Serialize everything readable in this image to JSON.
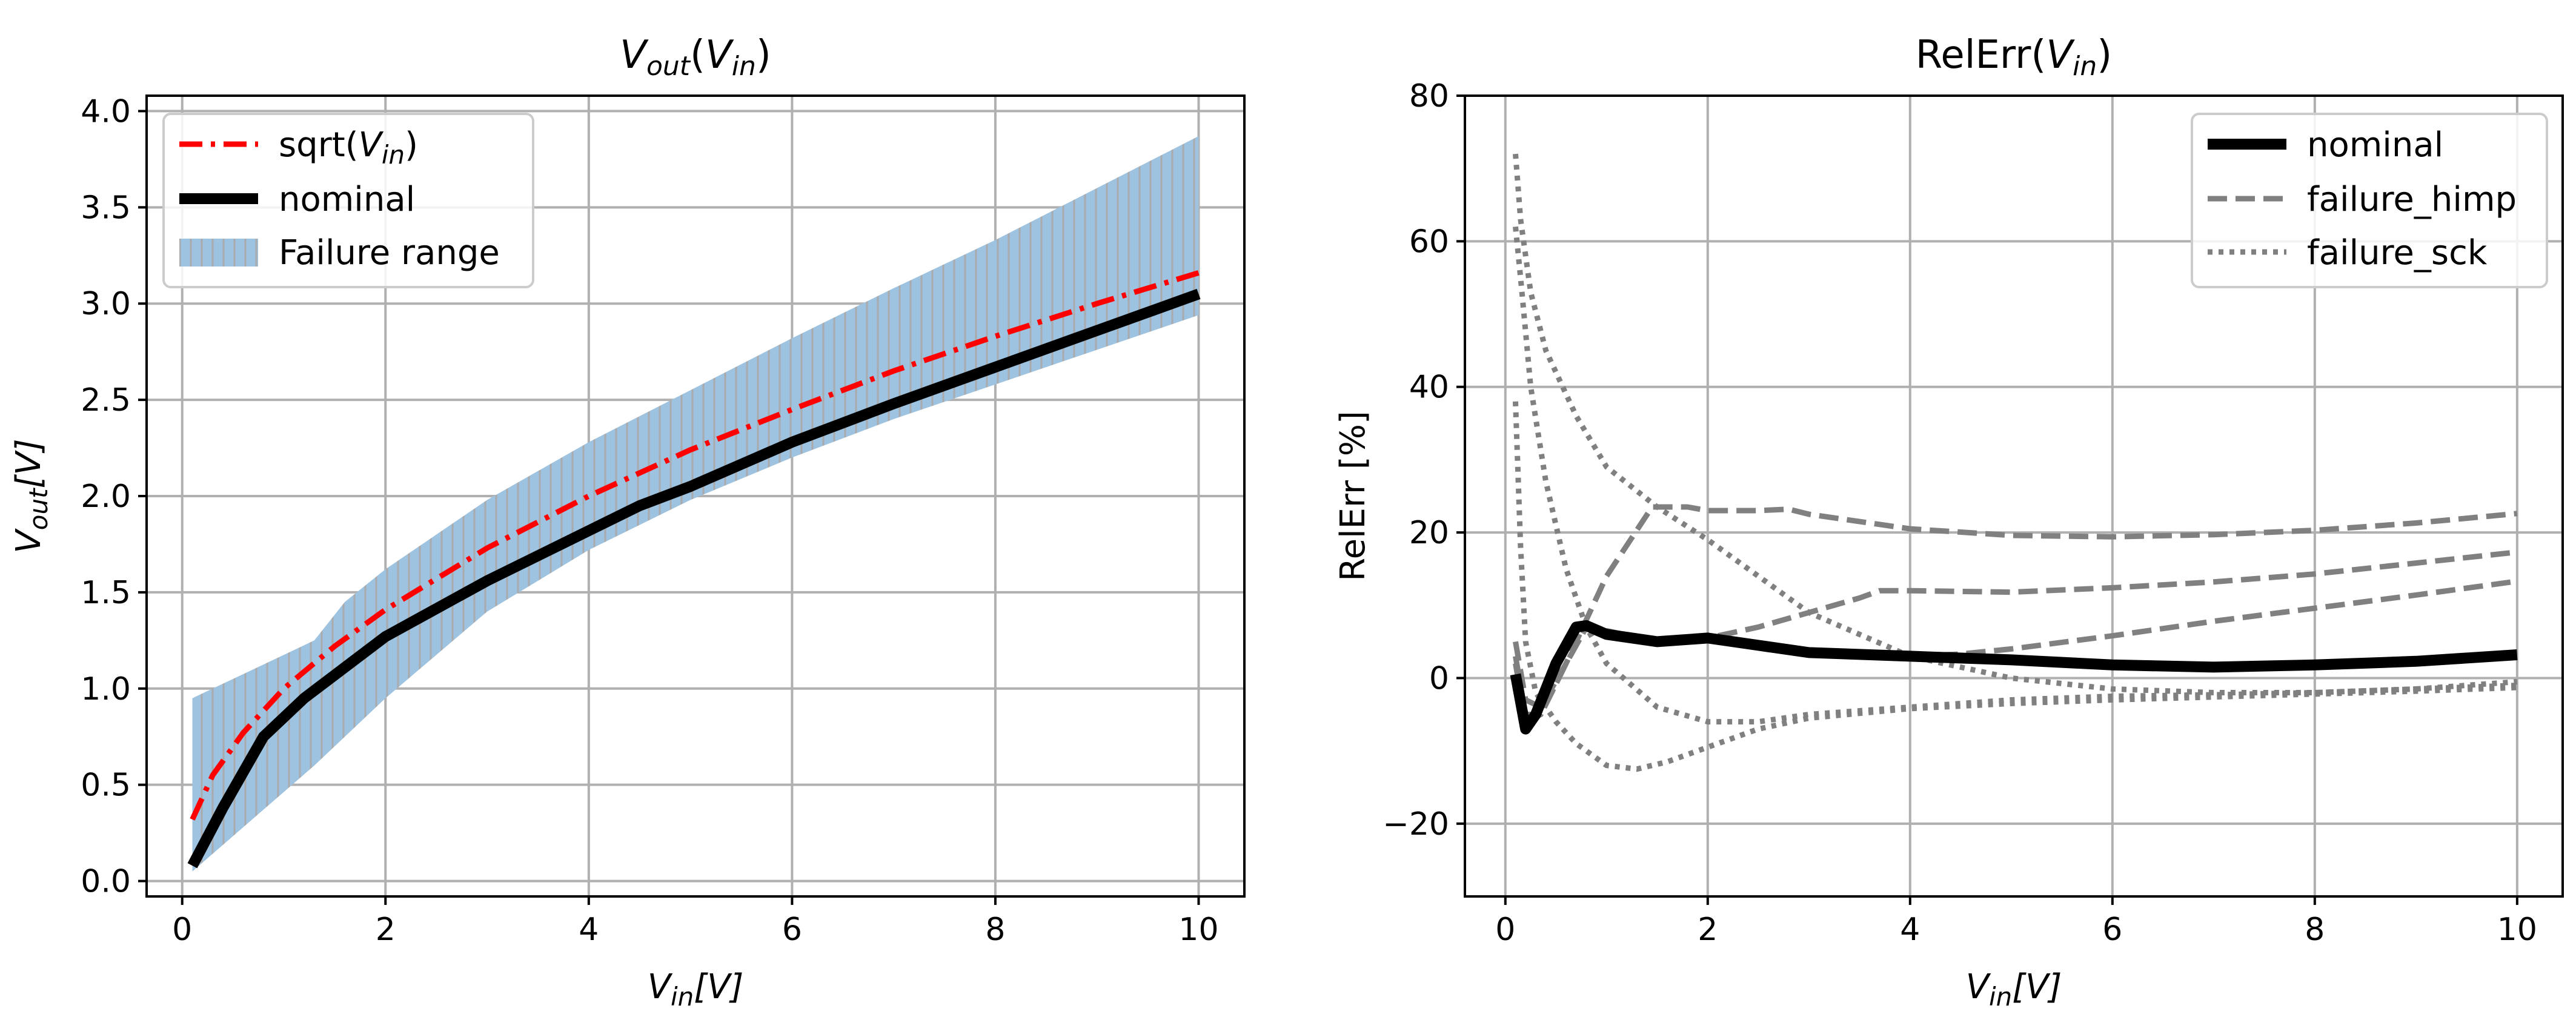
{
  "figure": {
    "colors": {
      "sqrt": "#ff0000",
      "nominal": "#000000",
      "band": "#9ec3e0",
      "band_hatch": "#aaaaaa",
      "failure": "#808080",
      "grid": "#b0b0b0"
    }
  },
  "chart_data": [
    {
      "type": "line",
      "title_main": "V",
      "title_sub": "out",
      "title_paren_open": "(",
      "title_arg_main": "V",
      "title_arg_sub": "in",
      "title_paren_close": ")",
      "xlabel_main": "V",
      "xlabel_sub": "in",
      "xlabel_unit": "[V]",
      "ylabel_main": "V",
      "ylabel_sub": "out",
      "ylabel_unit": "[V]",
      "xlim": [
        -0.35,
        10.45
      ],
      "ylim": [
        -0.08,
        4.08
      ],
      "xticks": [
        0,
        2,
        4,
        6,
        8,
        10
      ],
      "xtick_labels": [
        "0",
        "2",
        "4",
        "6",
        "8",
        "10"
      ],
      "yticks": [
        0.0,
        0.5,
        1.0,
        1.5,
        2.0,
        2.5,
        3.0,
        3.5,
        4.0
      ],
      "ytick_labels": [
        "0.0",
        "0.5",
        "1.0",
        "1.5",
        "2.0",
        "2.5",
        "3.0",
        "3.5",
        "4.0"
      ],
      "grid": true,
      "legend_position": "top-left",
      "legend": {
        "sqrt_label_prefix": "sqrt(",
        "sqrt_label_main": "V",
        "sqrt_label_sub": "in",
        "sqrt_label_suffix": ")",
        "nominal_label": "nominal",
        "band_label": "Failure range"
      },
      "series": [
        {
          "name": "sqrt(V_in)",
          "style": "dashdot",
          "color": "#ff0000",
          "x": [
            0.1,
            0.3,
            0.6,
            1.0,
            1.5,
            2.0,
            3.0,
            4.0,
            5.0,
            6.0,
            7.0,
            8.0,
            9.0,
            10.0
          ],
          "y": [
            0.32,
            0.55,
            0.77,
            1.0,
            1.22,
            1.41,
            1.73,
            2.0,
            2.24,
            2.45,
            2.65,
            2.83,
            3.0,
            3.16
          ]
        },
        {
          "name": "nominal",
          "style": "solid",
          "color": "#000000",
          "x": [
            0.1,
            0.4,
            0.8,
            1.2,
            2.0,
            3.0,
            4.0,
            4.5,
            5.0,
            6.0,
            7.0,
            8.0,
            9.0,
            10.0
          ],
          "y": [
            0.08,
            0.38,
            0.75,
            0.95,
            1.27,
            1.56,
            1.82,
            1.95,
            2.05,
            2.28,
            2.48,
            2.67,
            2.86,
            3.05
          ]
        }
      ],
      "band": {
        "name": "Failure range",
        "x": [
          0.1,
          1.3,
          1.6,
          2.0,
          3.0,
          4.0,
          5.0,
          6.0,
          7.0,
          8.0,
          9.0,
          10.0
        ],
        "upper": [
          0.95,
          1.25,
          1.45,
          1.62,
          1.98,
          2.28,
          2.55,
          2.82,
          3.08,
          3.33,
          3.6,
          3.87
        ],
        "lower": [
          0.05,
          0.6,
          0.75,
          0.95,
          1.4,
          1.72,
          1.98,
          2.2,
          2.4,
          2.58,
          2.76,
          2.94
        ]
      }
    },
    {
      "type": "line",
      "title_main": "RelErr(",
      "title_arg_main": "V",
      "title_arg_sub": "in",
      "title_paren_close": ")",
      "xlabel_main": "V",
      "xlabel_sub": "in",
      "xlabel_unit": "[V]",
      "ylabel": "RelErr [%]",
      "xlim": [
        -0.4,
        10.45
      ],
      "ylim": [
        -30,
        80
      ],
      "xticks": [
        0,
        2,
        4,
        6,
        8,
        10
      ],
      "xtick_labels": [
        "0",
        "2",
        "4",
        "6",
        "8",
        "10"
      ],
      "yticks": [
        -20,
        0,
        20,
        40,
        60,
        80
      ],
      "ytick_labels": [
        "−20",
        "0",
        "20",
        "40",
        "60",
        "80"
      ],
      "grid": true,
      "legend_position": "top-right",
      "legend": {
        "nominal_label": "nominal",
        "himp_label": "failure_himp",
        "sck_label": "failure_sck"
      },
      "series": [
        {
          "name": "nominal",
          "style": "solid",
          "color": "#000000",
          "x": [
            0.1,
            0.2,
            0.3,
            0.5,
            0.7,
            0.8,
            1.0,
            1.5,
            2.0,
            2.5,
            3.0,
            4.0,
            5.0,
            6.0,
            7.0,
            8.0,
            9.0,
            10.0
          ],
          "y": [
            0.5,
            -7.0,
            -5.0,
            2.0,
            7.0,
            7.2,
            6.0,
            5.0,
            5.5,
            4.5,
            3.5,
            3.0,
            2.5,
            1.8,
            1.5,
            1.8,
            2.3,
            3.2
          ]
        },
        {
          "name": "failure_himp A",
          "style": "dashed",
          "color": "#808080",
          "x": [
            0.1,
            0.2,
            0.35,
            0.6,
            1.0,
            1.45,
            1.8,
            2.0,
            2.5,
            2.8,
            3.0,
            4.0,
            5.0,
            6.0,
            7.0,
            8.0,
            9.0,
            10.0
          ],
          "y": [
            5.0,
            -3.0,
            -4.0,
            2.0,
            14.0,
            23.5,
            23.5,
            23.0,
            23.0,
            23.2,
            22.5,
            20.5,
            19.6,
            19.4,
            19.7,
            20.3,
            21.3,
            22.6
          ]
        },
        {
          "name": "failure_himp B",
          "style": "dashed",
          "color": "#808080",
          "x": [
            0.1,
            0.2,
            0.35,
            0.6,
            0.8,
            1.0,
            1.5,
            2.0,
            2.5,
            3.0,
            3.5,
            3.7,
            4.0,
            5.0,
            6.0,
            7.0,
            8.0,
            9.0,
            10.0
          ],
          "y": [
            3.0,
            -5.0,
            -5.0,
            2.0,
            7.0,
            6.5,
            5.0,
            5.5,
            7.0,
            9.0,
            11.0,
            12.0,
            12.0,
            11.8,
            12.4,
            13.2,
            14.3,
            15.8,
            17.3
          ]
        },
        {
          "name": "failure_himp C",
          "style": "dashed",
          "color": "#808080",
          "x": [
            0.1,
            0.2,
            0.35,
            0.6,
            0.8,
            1.0,
            1.5,
            2.0,
            2.5,
            3.0,
            4.0,
            4.5,
            5.0,
            6.0,
            7.0,
            8.0,
            9.0,
            10.0
          ],
          "y": [
            2.0,
            -6.0,
            -5.0,
            2.0,
            7.0,
            6.5,
            5.0,
            5.5,
            4.5,
            3.5,
            3.0,
            3.3,
            4.0,
            5.8,
            7.8,
            9.6,
            11.4,
            13.3
          ]
        },
        {
          "name": "failure_sck A",
          "style": "dotted",
          "color": "#808080",
          "x": [
            0.1,
            0.15,
            0.25,
            0.4,
            0.7,
            1.0,
            1.5,
            2.0,
            2.5,
            3.0,
            4.0,
            5.0,
            6.0,
            7.0,
            8.0,
            9.0,
            10.0
          ],
          "y": [
            72.0,
            63.0,
            53.0,
            45.0,
            36.0,
            29.0,
            23.5,
            19.0,
            14.0,
            9.0,
            3.0,
            0.0,
            -1.5,
            -2.0,
            -2.0,
            -1.5,
            -0.5
          ]
        },
        {
          "name": "failure_sck B",
          "style": "dotted",
          "color": "#808080",
          "x": [
            0.1,
            0.15,
            0.25,
            0.4,
            0.6,
            0.8,
            1.0,
            1.5,
            2.0,
            2.5,
            3.0,
            4.0,
            5.0,
            6.0,
            7.0,
            8.0,
            9.0,
            10.0
          ],
          "y": [
            62.0,
            55.0,
            40.0,
            27.0,
            15.0,
            7.0,
            2.0,
            -4.0,
            -6.0,
            -6.0,
            -5.0,
            -4.0,
            -3.0,
            -2.5,
            -2.3,
            -2.0,
            -1.5,
            -1.0
          ]
        },
        {
          "name": "failure_sck C",
          "style": "dotted",
          "color": "#808080",
          "x": [
            0.1,
            0.15,
            0.2,
            0.3,
            0.5,
            0.7,
            1.0,
            1.3,
            1.6,
            2.0,
            2.5,
            3.0,
            4.0,
            5.0,
            6.0,
            7.0,
            8.0,
            9.0,
            10.0
          ],
          "y": [
            38.0,
            18.0,
            5.0,
            -2.0,
            -6.0,
            -9.0,
            -12.0,
            -12.5,
            -11.5,
            -9.5,
            -7.0,
            -5.5,
            -4.2,
            -3.5,
            -3.0,
            -2.6,
            -2.2,
            -1.8,
            -1.3
          ]
        }
      ]
    }
  ]
}
